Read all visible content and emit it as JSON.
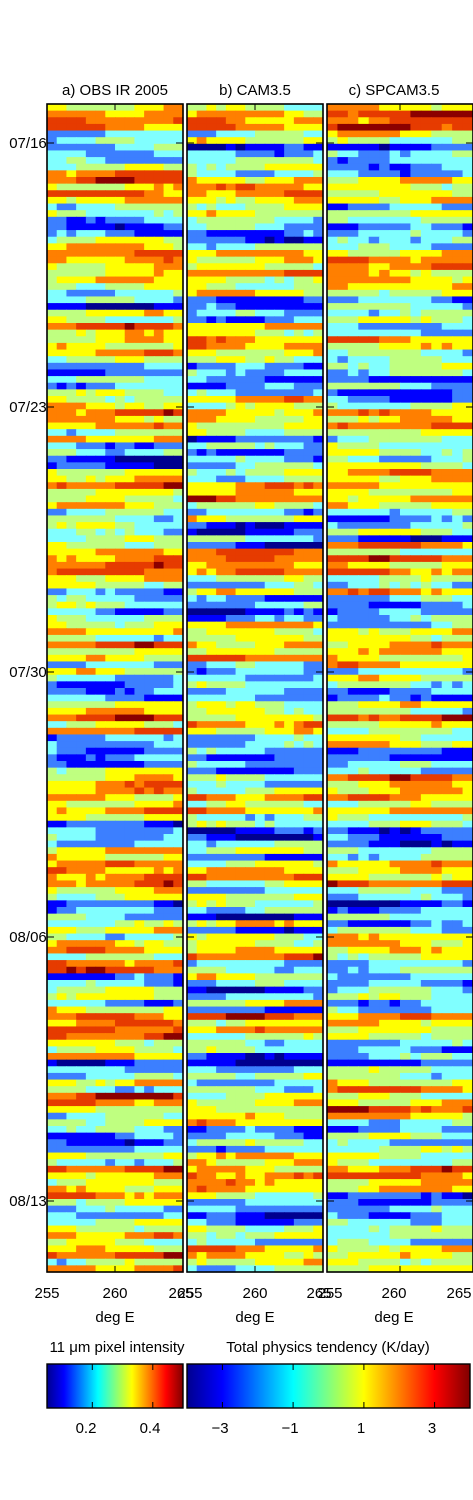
{
  "chart_data": [
    {
      "type": "heatmap",
      "title": "a) OBS IR 2005",
      "xlabel": "deg E",
      "x_ticks": [
        "255",
        "260",
        "265"
      ],
      "xlim": [
        255,
        265
      ],
      "y_ticks": [
        "07/16",
        "07/23",
        "07/30",
        "08/06",
        "08/13"
      ],
      "ylim": [
        "07/14",
        "08/15"
      ],
      "colorbar": "left",
      "seed": 3,
      "bias": 0.05
    },
    {
      "type": "heatmap",
      "title": "b) CAM3.5",
      "xlabel": "deg E",
      "x_ticks": [
        "255",
        "260",
        "265"
      ],
      "xlim": [
        255,
        265
      ],
      "y_ticks": [
        "07/16",
        "07/23",
        "07/30",
        "08/06",
        "08/13"
      ],
      "ylim": [
        "07/14",
        "08/15"
      ],
      "colorbar": "right",
      "seed": 11,
      "bias": -0.1
    },
    {
      "type": "heatmap",
      "title": "c) SPCAM3.5",
      "xlabel": "deg E",
      "x_ticks": [
        "255",
        "260",
        "265"
      ],
      "xlim": [
        255,
        265
      ],
      "y_ticks": [
        "07/16",
        "07/23",
        "07/30",
        "08/06",
        "08/13"
      ],
      "ylim": [
        "07/14",
        "08/15"
      ],
      "colorbar": "right",
      "seed": 29,
      "bias": 0.0
    }
  ],
  "y_axis_labels": [
    "07/16",
    "07/23",
    "07/30",
    "08/06",
    "08/13"
  ],
  "colorbars": [
    {
      "label": "11 μm pixel intensity",
      "range": [
        0.05,
        0.5
      ],
      "tick_values": [
        0.2,
        0.4
      ],
      "tick_labels": [
        "0.2",
        "0.4"
      ],
      "colormap": "jet"
    },
    {
      "label": "Total physics tendency (K/day)",
      "range": [
        -4,
        4
      ],
      "tick_values": [
        -3,
        -1,
        1,
        3
      ],
      "tick_labels": [
        "−3",
        "−1",
        "1",
        "3"
      ],
      "colormap": "jet"
    }
  ],
  "palette": [
    "#00008f",
    "#0000ff",
    "#3c7fff",
    "#80ffff",
    "#bfff80",
    "#ffff00",
    "#ff7f00",
    "#e63b00",
    "#8b0000"
  ]
}
